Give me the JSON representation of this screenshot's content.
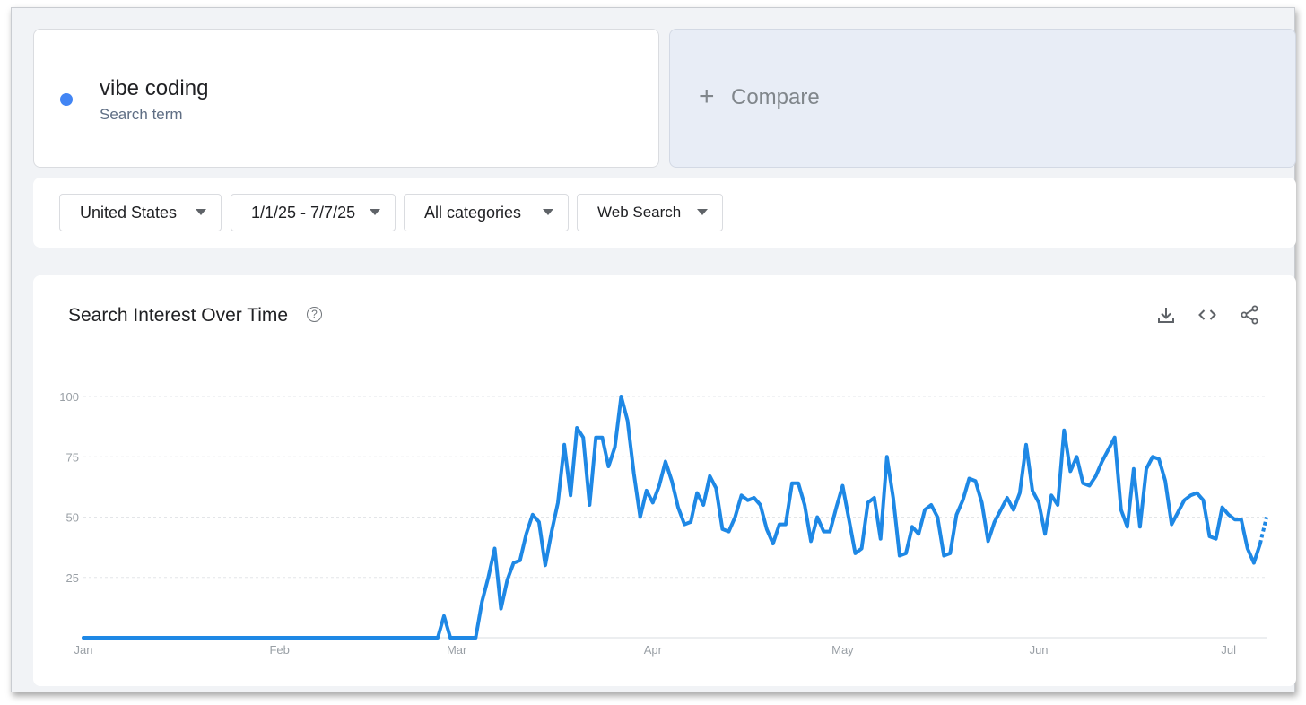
{
  "search_term": {
    "name": "vibe coding",
    "subtitle": "Search term",
    "color": "#4285f4"
  },
  "compare": {
    "icon": "plus-icon",
    "label": "Compare"
  },
  "filters": {
    "region": "United States",
    "date_range": "1/1/25 - 7/7/25",
    "category": "All categories",
    "search_type": "Web Search"
  },
  "chart_card": {
    "title": "Search Interest Over Time",
    "help_icon": "help-circle-icon",
    "toolbar_icons": [
      "download-icon",
      "embed-code-icon",
      "share-icon"
    ]
  },
  "chart_data": {
    "type": "line",
    "title": "",
    "xlabel": "",
    "ylabel": "",
    "ylim": [
      0,
      100
    ],
    "yticks": [
      25,
      50,
      75,
      100
    ],
    "x_start": "2025-01-01",
    "x_end": "2025-07-07",
    "month_ticks": [
      {
        "label": "Jan",
        "date": "2025-01-01"
      },
      {
        "label": "Feb",
        "date": "2025-02-01"
      },
      {
        "label": "Mar",
        "date": "2025-03-01"
      },
      {
        "label": "Apr",
        "date": "2025-04-01"
      },
      {
        "label": "May",
        "date": "2025-05-01"
      },
      {
        "label": "Jun",
        "date": "2025-06-01"
      },
      {
        "label": "Jul",
        "date": "2025-07-01"
      }
    ],
    "grid": true,
    "line_color": "#1e88e5",
    "partial_from": "2025-07-06",
    "series": [
      {
        "name": "vibe coding",
        "points": [
          [
            "2025-01-01",
            0
          ],
          [
            "2025-01-15",
            0
          ],
          [
            "2025-02-01",
            0
          ],
          [
            "2025-02-15",
            0
          ],
          [
            "2025-02-25",
            0
          ],
          [
            "2025-02-26",
            0
          ],
          [
            "2025-02-27",
            9
          ],
          [
            "2025-02-28",
            0
          ],
          [
            "2025-03-01",
            0
          ],
          [
            "2025-03-02",
            0
          ],
          [
            "2025-03-03",
            0
          ],
          [
            "2025-03-04",
            0
          ],
          [
            "2025-03-05",
            15
          ],
          [
            "2025-03-06",
            25
          ],
          [
            "2025-03-07",
            37
          ],
          [
            "2025-03-08",
            12
          ],
          [
            "2025-03-09",
            24
          ],
          [
            "2025-03-10",
            31
          ],
          [
            "2025-03-11",
            32
          ],
          [
            "2025-03-12",
            43
          ],
          [
            "2025-03-13",
            51
          ],
          [
            "2025-03-14",
            48
          ],
          [
            "2025-03-15",
            30
          ],
          [
            "2025-03-16",
            44
          ],
          [
            "2025-03-17",
            56
          ],
          [
            "2025-03-18",
            80
          ],
          [
            "2025-03-19",
            59
          ],
          [
            "2025-03-20",
            87
          ],
          [
            "2025-03-21",
            83
          ],
          [
            "2025-03-22",
            55
          ],
          [
            "2025-03-23",
            83
          ],
          [
            "2025-03-24",
            83
          ],
          [
            "2025-03-25",
            71
          ],
          [
            "2025-03-26",
            79
          ],
          [
            "2025-03-27",
            100
          ],
          [
            "2025-03-28",
            90
          ],
          [
            "2025-03-29",
            68
          ],
          [
            "2025-03-30",
            50
          ],
          [
            "2025-03-31",
            61
          ],
          [
            "2025-04-01",
            56
          ],
          [
            "2025-04-02",
            63
          ],
          [
            "2025-04-03",
            73
          ],
          [
            "2025-04-04",
            65
          ],
          [
            "2025-04-05",
            54
          ],
          [
            "2025-04-06",
            47
          ],
          [
            "2025-04-07",
            48
          ],
          [
            "2025-04-08",
            60
          ],
          [
            "2025-04-09",
            55
          ],
          [
            "2025-04-10",
            67
          ],
          [
            "2025-04-11",
            62
          ],
          [
            "2025-04-12",
            45
          ],
          [
            "2025-04-13",
            44
          ],
          [
            "2025-04-14",
            50
          ],
          [
            "2025-04-15",
            59
          ],
          [
            "2025-04-16",
            57
          ],
          [
            "2025-04-17",
            58
          ],
          [
            "2025-04-18",
            55
          ],
          [
            "2025-04-19",
            45
          ],
          [
            "2025-04-20",
            39
          ],
          [
            "2025-04-21",
            47
          ],
          [
            "2025-04-22",
            47
          ],
          [
            "2025-04-23",
            64
          ],
          [
            "2025-04-24",
            64
          ],
          [
            "2025-04-25",
            55
          ],
          [
            "2025-04-26",
            40
          ],
          [
            "2025-04-27",
            50
          ],
          [
            "2025-04-28",
            44
          ],
          [
            "2025-04-29",
            44
          ],
          [
            "2025-04-30",
            54
          ],
          [
            "2025-05-01",
            63
          ],
          [
            "2025-05-02",
            49
          ],
          [
            "2025-05-03",
            35
          ],
          [
            "2025-05-04",
            37
          ],
          [
            "2025-05-05",
            56
          ],
          [
            "2025-05-06",
            58
          ],
          [
            "2025-05-07",
            41
          ],
          [
            "2025-05-08",
            75
          ],
          [
            "2025-05-09",
            58
          ],
          [
            "2025-05-10",
            34
          ],
          [
            "2025-05-11",
            35
          ],
          [
            "2025-05-12",
            46
          ],
          [
            "2025-05-13",
            43
          ],
          [
            "2025-05-14",
            53
          ],
          [
            "2025-05-15",
            55
          ],
          [
            "2025-05-16",
            50
          ],
          [
            "2025-05-17",
            34
          ],
          [
            "2025-05-18",
            35
          ],
          [
            "2025-05-19",
            51
          ],
          [
            "2025-05-20",
            57
          ],
          [
            "2025-05-21",
            66
          ],
          [
            "2025-05-22",
            65
          ],
          [
            "2025-05-23",
            56
          ],
          [
            "2025-05-24",
            40
          ],
          [
            "2025-05-25",
            48
          ],
          [
            "2025-05-26",
            53
          ],
          [
            "2025-05-27",
            58
          ],
          [
            "2025-05-28",
            53
          ],
          [
            "2025-05-29",
            60
          ],
          [
            "2025-05-30",
            80
          ],
          [
            "2025-05-31",
            61
          ],
          [
            "2025-06-01",
            56
          ],
          [
            "2025-06-02",
            43
          ],
          [
            "2025-06-03",
            59
          ],
          [
            "2025-06-04",
            55
          ],
          [
            "2025-06-05",
            86
          ],
          [
            "2025-06-06",
            69
          ],
          [
            "2025-06-07",
            75
          ],
          [
            "2025-06-08",
            64
          ],
          [
            "2025-06-09",
            63
          ],
          [
            "2025-06-10",
            67
          ],
          [
            "2025-06-11",
            73
          ],
          [
            "2025-06-12",
            78
          ],
          [
            "2025-06-13",
            83
          ],
          [
            "2025-06-14",
            53
          ],
          [
            "2025-06-15",
            46
          ],
          [
            "2025-06-16",
            70
          ],
          [
            "2025-06-17",
            46
          ],
          [
            "2025-06-18",
            70
          ],
          [
            "2025-06-19",
            75
          ],
          [
            "2025-06-20",
            74
          ],
          [
            "2025-06-21",
            65
          ],
          [
            "2025-06-22",
            47
          ],
          [
            "2025-06-23",
            52
          ],
          [
            "2025-06-24",
            57
          ],
          [
            "2025-06-25",
            59
          ],
          [
            "2025-06-26",
            60
          ],
          [
            "2025-06-27",
            57
          ],
          [
            "2025-06-28",
            42
          ],
          [
            "2025-06-29",
            41
          ],
          [
            "2025-06-30",
            54
          ],
          [
            "2025-07-01",
            51
          ],
          [
            "2025-07-02",
            49
          ],
          [
            "2025-07-03",
            49
          ],
          [
            "2025-07-04",
            37
          ],
          [
            "2025-07-05",
            31
          ],
          [
            "2025-07-06",
            39
          ],
          [
            "2025-07-07",
            50
          ]
        ]
      }
    ]
  }
}
